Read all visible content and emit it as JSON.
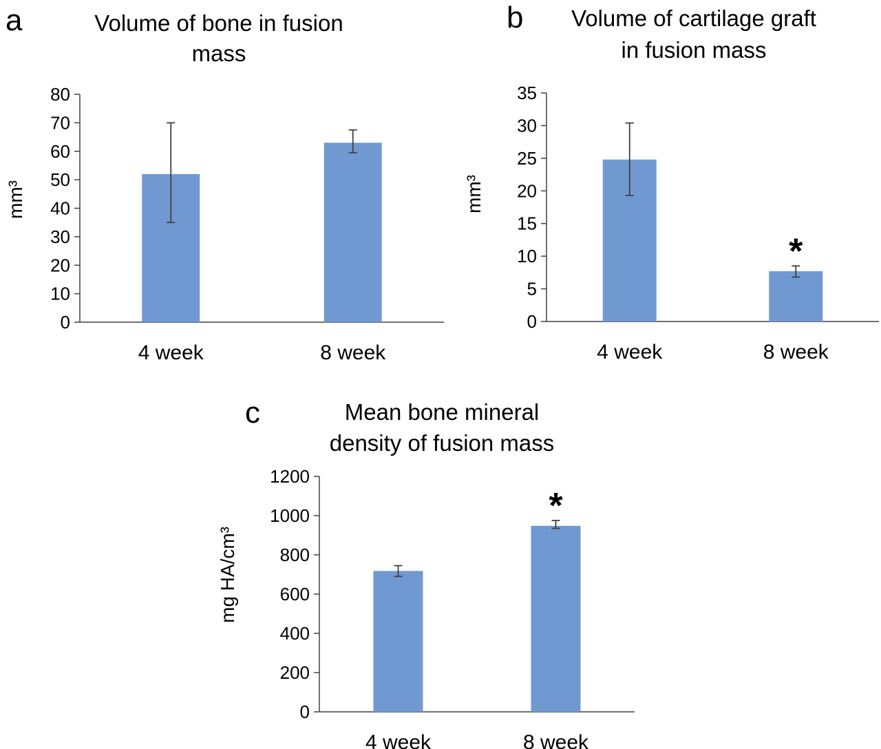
{
  "chart_data": [
    {
      "panel": "a",
      "type": "bar",
      "title_lines": [
        "Volume of bone in fusion",
        "mass"
      ],
      "xlabel": "",
      "ylabel": "mm³",
      "categories": [
        "4 week",
        "8 week"
      ],
      "values": [
        52,
        63
      ],
      "error": [
        [
          35,
          70
        ],
        [
          59.5,
          67.5
        ]
      ],
      "significance": [
        "",
        ""
      ],
      "ylim": [
        0,
        80
      ],
      "yticks": [
        "0",
        "10",
        "20",
        "30",
        "40",
        "50",
        "60",
        "70",
        "80"
      ],
      "grid": false,
      "bar_color": "#7199d1"
    },
    {
      "panel": "b",
      "type": "bar",
      "title_lines": [
        "Volume of cartilage graft",
        "in fusion mass"
      ],
      "xlabel": "",
      "ylabel": "mm³",
      "categories": [
        "4 week",
        "8 week"
      ],
      "values": [
        24.8,
        7.7
      ],
      "error": [
        [
          19.3,
          30.4
        ],
        [
          6.8,
          8.5
        ]
      ],
      "significance": [
        "",
        "*"
      ],
      "ylim": [
        0,
        35
      ],
      "yticks": [
        "0",
        "5",
        "10",
        "15",
        "20",
        "25",
        "30",
        "35"
      ],
      "grid": false,
      "bar_color": "#7199d1"
    },
    {
      "panel": "c",
      "type": "bar",
      "title_lines": [
        "Mean bone mineral",
        "density of fusion mass"
      ],
      "xlabel": "",
      "ylabel": "mg HA/cm³",
      "categories": [
        "4 week",
        "8 week"
      ],
      "values": [
        718,
        948
      ],
      "error": [
        [
          690,
          745
        ],
        [
          935,
          975
        ]
      ],
      "significance": [
        "",
        "*"
      ],
      "ylim": [
        0,
        1200
      ],
      "yticks": [
        "0",
        "200",
        "400",
        "600",
        "800",
        "1000",
        "1200"
      ],
      "grid": false,
      "bar_color": "#7199d1"
    }
  ],
  "colors": {
    "bar": "#7199d1",
    "error_bar": "#404040",
    "axis": "#404040",
    "text": "#000000"
  }
}
